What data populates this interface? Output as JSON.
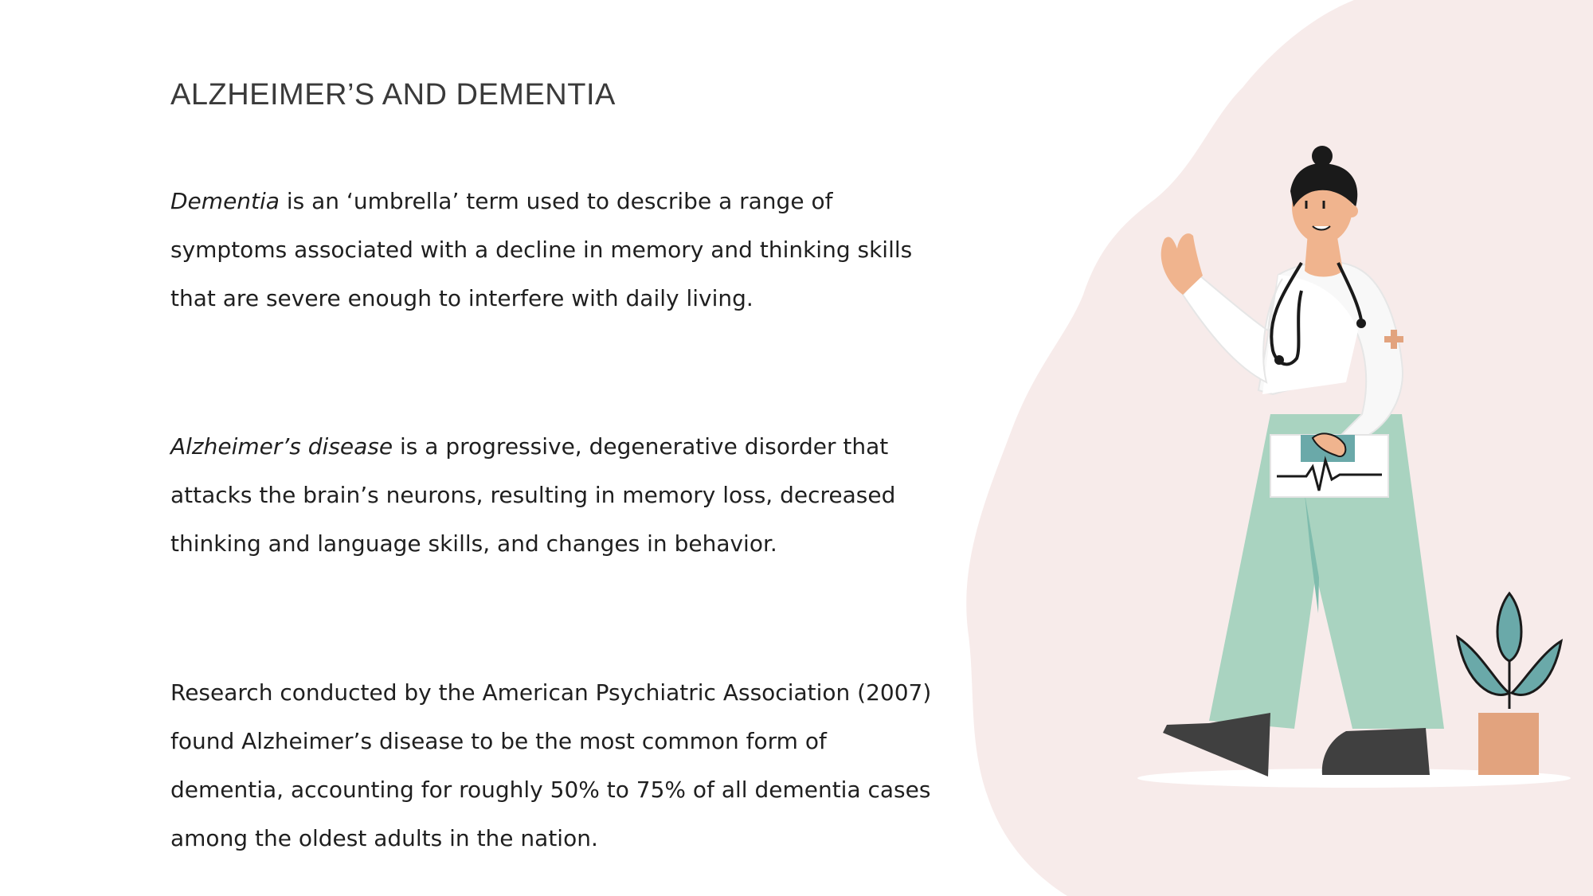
{
  "slide": {
    "title": "ALZHEIMER’S AND DEMENTIA",
    "paragraphs": [
      {
        "term": "Dementia",
        "body": " is an ‘umbrella’ term used to describe a range of symptoms associated with a decline in memory and thinking skills that are severe enough to interfere with daily living."
      },
      {
        "term": "Alzheimer’s disease",
        "body": " is a progressive, degenerative disorder that attacks the brain’s neurons, resulting in memory loss, decreased thinking and language skills, and changes in behavior."
      },
      {
        "text": "Research conducted by the American Psychiatric Association (2007) found Alzheimer’s disease to be the most common form of dementia, accounting for roughly 50% to 75% of all dementia cases among the oldest adults in the nation."
      }
    ]
  },
  "illustration": {
    "subject": "doctor-with-stethoscope-and-clipboard",
    "plant": "potted-plant"
  },
  "colors": {
    "background": "#ffffff",
    "blob": "#f7ebea",
    "title": "#3a3a3a",
    "text": "#1f1f1f",
    "pants": "#a9d3c0",
    "skin": "#f0b48e",
    "plant_leaf": "#6aa9a9",
    "pot": "#e2a37e",
    "shoes": "#404040"
  }
}
